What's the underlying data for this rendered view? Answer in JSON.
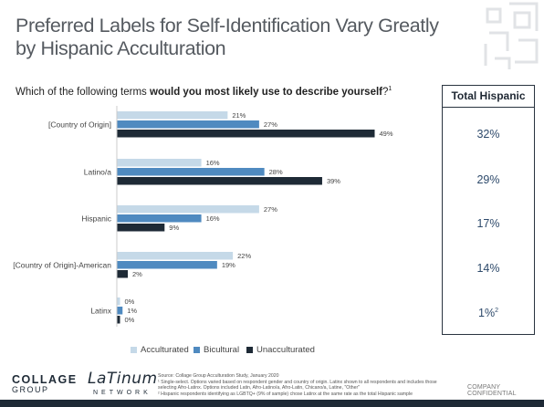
{
  "title": "Preferred Labels for Self-Identification Vary Greatly by Hispanic Acculturation",
  "question": {
    "prefix": "Which of the following terms ",
    "bold": "would you most likely use to describe yourself",
    "suffix": "?",
    "sup": "1"
  },
  "total_panel": {
    "header": "Total Hispanic",
    "values": [
      {
        "value": "32%",
        "sup": ""
      },
      {
        "value": "29%",
        "sup": ""
      },
      {
        "value": "17%",
        "sup": ""
      },
      {
        "value": "14%",
        "sup": ""
      },
      {
        "value": "1%",
        "sup": "2"
      }
    ]
  },
  "colors": {
    "acculturated": "#c5d9e8",
    "bicultural": "#4f8ac0",
    "unacculturated": "#1e2a36",
    "accent_red": "#c0392b"
  },
  "chart_data": {
    "type": "bar",
    "orientation": "horizontal",
    "categories": [
      "[Country of Origin]",
      "Latino/a",
      "Hispanic",
      "[Country of Origin]-American",
      "Latinx"
    ],
    "series": [
      {
        "name": "Acculturated",
        "values": [
          21,
          16,
          27,
          22,
          0
        ]
      },
      {
        "name": "Bicultural",
        "values": [
          27,
          28,
          16,
          19,
          1
        ]
      },
      {
        "name": "Unacculturated",
        "values": [
          49,
          39,
          9,
          2,
          0
        ]
      }
    ],
    "value_suffix": "%",
    "xlim": [
      0,
      49
    ],
    "grid": false,
    "legend": "bottom"
  },
  "logos": {
    "collage_top": "COLLAGE",
    "collage_bottom": "GROUP",
    "latinum_word": "LaTinum",
    "latinum_network": "NETWORK"
  },
  "footnotes": [
    "Source: Collage Group Acculturation Study, January 2020",
    "¹ Single-select. Options varied based on respondent gender and country of origin. Latinx shown to all respondents and includes those selecting Afro-Latinx. Options included Latin, Afro-Latino/a, Afro-Latin, Chicano/a, Latine, \"Other\"",
    "² Hispanic respondents identifying as LGBTQ+ (9% of sample) chose Latinx at the same rate as the total Hispanic sample"
  ],
  "confidential": "COMPANY CONFIDENTIAL"
}
